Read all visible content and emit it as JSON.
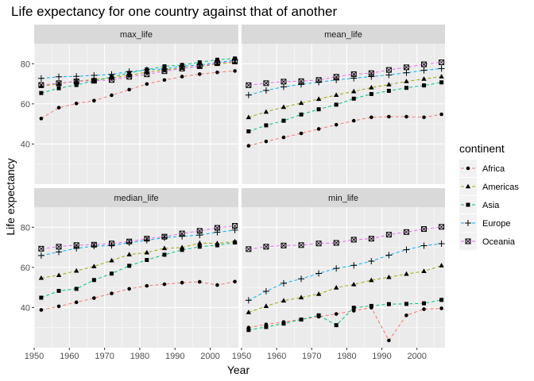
{
  "chart_data": {
    "type": "line",
    "title": "Life expectancy for one country against that of another",
    "xlabel": "Year",
    "ylabel": "Life expectancy",
    "xlim": [
      1950,
      2008
    ],
    "ylim": [
      20,
      90
    ],
    "xticks": [
      1950,
      1960,
      1970,
      1980,
      1990,
      2000
    ],
    "yticks": [
      40,
      60,
      80
    ],
    "grid": true,
    "legend": {
      "title": "continent",
      "position": "right"
    },
    "x": [
      1952,
      1957,
      1962,
      1967,
      1972,
      1977,
      1982,
      1987,
      1992,
      1997,
      2002,
      2007
    ],
    "continents": [
      {
        "name": "Africa",
        "color": "#F8766D",
        "shape": "circle"
      },
      {
        "name": "Americas",
        "color": "#A3A500",
        "shape": "triangle"
      },
      {
        "name": "Asia",
        "color": "#00BF7D",
        "shape": "square"
      },
      {
        "name": "Europe",
        "color": "#00B0F6",
        "shape": "plus"
      },
      {
        "name": "Oceania",
        "color": "#E76BF3",
        "shape": "boxcross"
      }
    ],
    "panels": [
      {
        "label": "max_life",
        "series": [
          {
            "name": "Africa",
            "values": [
              52.7,
              58.1,
              60.2,
              61.6,
              64.3,
              67.1,
              69.9,
              71.9,
              73.6,
              74.8,
              75.7,
              76.4
            ]
          },
          {
            "name": "Americas",
            "values": [
              68.8,
              70.0,
              71.3,
              72.1,
              72.9,
              74.2,
              75.8,
              76.9,
              77.9,
              78.6,
              79.8,
              80.7
            ]
          },
          {
            "name": "Asia",
            "values": [
              65.4,
              67.8,
              69.4,
              71.4,
              73.4,
              75.4,
              77.1,
              78.7,
              79.4,
              80.7,
              82.0,
              82.6
            ]
          },
          {
            "name": "Europe",
            "values": [
              72.7,
              73.5,
              73.7,
              74.2,
              74.7,
              76.1,
              76.99,
              77.4,
              78.8,
              79.4,
              80.6,
              81.8
            ]
          },
          {
            "name": "Oceania",
            "values": [
              69.4,
              70.3,
              71.2,
              71.5,
              71.9,
              73.5,
              74.7,
              76.3,
              77.6,
              78.8,
              80.4,
              81.2
            ]
          }
        ]
      },
      {
        "label": "mean_life",
        "series": [
          {
            "name": "Africa",
            "values": [
              39.1,
              41.3,
              43.3,
              45.3,
              47.5,
              49.6,
              51.6,
              53.3,
              53.6,
              53.6,
              53.3,
              54.8
            ]
          },
          {
            "name": "Americas",
            "values": [
              53.3,
              56.0,
              58.4,
              60.4,
              62.4,
              64.4,
              66.2,
              68.1,
              69.6,
              71.2,
              72.4,
              73.6
            ]
          },
          {
            "name": "Asia",
            "values": [
              46.3,
              49.3,
              51.6,
              54.7,
              57.3,
              59.6,
              62.6,
              64.9,
              66.5,
              68.0,
              69.2,
              70.7
            ]
          },
          {
            "name": "Europe",
            "values": [
              64.4,
              66.7,
              68.5,
              69.7,
              70.8,
              71.9,
              72.8,
              73.6,
              74.4,
              75.5,
              76.7,
              77.6
            ]
          },
          {
            "name": "Oceania",
            "values": [
              69.3,
              70.3,
              71.1,
              71.3,
              71.9,
              73.5,
              74.8,
              75.3,
              76.9,
              78.2,
              79.7,
              80.7
            ]
          }
        ]
      },
      {
        "label": "median_life",
        "series": [
          {
            "name": "Africa",
            "values": [
              38.8,
              40.6,
              42.6,
              44.7,
              47.0,
              49.3,
              50.8,
              51.6,
              52.4,
              52.8,
              51.2,
              52.9
            ]
          },
          {
            "name": "Americas",
            "values": [
              54.7,
              56.1,
              58.3,
              60.5,
              63.4,
              66.4,
              67.4,
              69.5,
              69.9,
              72.1,
              72.0,
              72.9
            ]
          },
          {
            "name": "Asia",
            "values": [
              44.9,
              48.3,
              49.3,
              53.7,
              56.9,
              60.8,
              63.7,
              66.3,
              68.7,
              70.3,
              71.0,
              72.4
            ]
          },
          {
            "name": "Europe",
            "values": [
              65.9,
              67.7,
              69.5,
              70.6,
              70.9,
              72.3,
              73.5,
              74.8,
              75.5,
              76.1,
              77.5,
              78.6
            ]
          },
          {
            "name": "Oceania",
            "values": [
              69.3,
              70.3,
              71.1,
              71.3,
              71.9,
              72.9,
              74.3,
              75.3,
              76.9,
              78.2,
              79.7,
              80.7
            ]
          }
        ]
      },
      {
        "label": "min_life",
        "series": [
          {
            "name": "Africa",
            "values": [
              30.0,
              31.6,
              32.8,
              34.1,
              35.4,
              36.8,
              38.4,
              39.9,
              23.6,
              36.1,
              39.2,
              39.6
            ]
          },
          {
            "name": "Americas",
            "values": [
              37.6,
              40.7,
              43.4,
              45.0,
              46.7,
              49.9,
              51.5,
              53.6,
              55.1,
              56.7,
              58.1,
              60.9
            ]
          },
          {
            "name": "Asia",
            "values": [
              28.8,
              30.3,
              32.0,
              34.0,
              36.1,
              31.2,
              39.9,
              40.8,
              41.7,
              41.8,
              42.1,
              43.8
            ]
          },
          {
            "name": "Europe",
            "values": [
              43.6,
              48.1,
              52.1,
              54.3,
              57.0,
              59.5,
              61.0,
              63.1,
              66.1,
              68.8,
              70.8,
              71.8
            ]
          },
          {
            "name": "Oceania",
            "values": [
              69.1,
              70.3,
              70.9,
              71.1,
              71.9,
              72.2,
              73.8,
              74.3,
              76.3,
              77.6,
              79.1,
              80.2
            ]
          }
        ]
      }
    ]
  }
}
